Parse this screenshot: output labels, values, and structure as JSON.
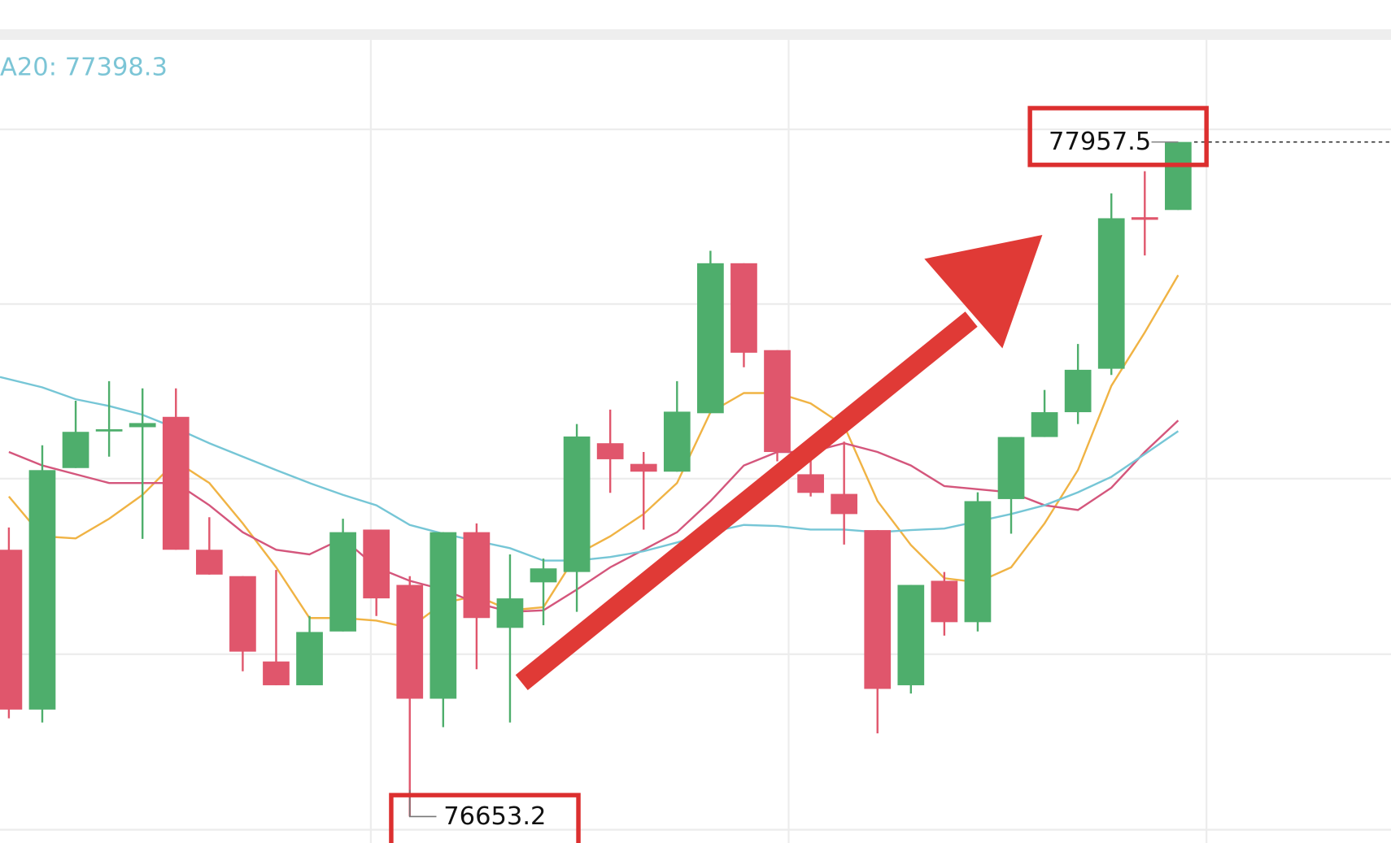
{
  "chart_data": {
    "type": "candlestick",
    "ma_label": "A20: 77398.3",
    "up_color": "#4eae6c",
    "down_color": "#e0566c",
    "ylim": [
      76602,
      78232
    ],
    "candles": [
      {
        "open": 77169,
        "high": 77212,
        "low": 76843,
        "close": 76860
      },
      {
        "open": 76860,
        "high": 77371,
        "low": 76835,
        "close": 77323
      },
      {
        "open": 77327,
        "high": 77457,
        "low": 77327,
        "close": 77397
      },
      {
        "open": 77399,
        "high": 77495,
        "low": 77349,
        "close": 77402
      },
      {
        "open": 77406,
        "high": 77481,
        "low": 77190,
        "close": 77414
      },
      {
        "open": 77426,
        "high": 77481,
        "low": 77169,
        "close": 77169
      },
      {
        "open": 77169,
        "high": 77232,
        "low": 77121,
        "close": 77121
      },
      {
        "open": 77118,
        "high": 77118,
        "low": 76934,
        "close": 76972
      },
      {
        "open": 76953,
        "high": 77130,
        "low": 76907,
        "close": 76907
      },
      {
        "open": 76907,
        "high": 77041,
        "low": 76907,
        "close": 77010
      },
      {
        "open": 77011,
        "high": 77229,
        "low": 77011,
        "close": 77203
      },
      {
        "open": 77208,
        "high": 77208,
        "low": 77041,
        "close": 77075
      },
      {
        "open": 77101,
        "high": 77118,
        "low": 76653.2,
        "close": 76881
      },
      {
        "open": 76881,
        "high": 77203,
        "low": 76826,
        "close": 77203
      },
      {
        "open": 77203,
        "high": 77220,
        "low": 76938,
        "close": 77037
      },
      {
        "open": 77018,
        "high": 77160,
        "low": 76835,
        "close": 77075
      },
      {
        "open": 77106,
        "high": 77152,
        "low": 77023,
        "close": 77133
      },
      {
        "open": 77126,
        "high": 77412,
        "low": 77049,
        "close": 77388
      },
      {
        "open": 77375,
        "high": 77440,
        "low": 77279,
        "close": 77344
      },
      {
        "open": 77335,
        "high": 77358,
        "low": 77208,
        "close": 77320
      },
      {
        "open": 77320,
        "high": 77495,
        "low": 77320,
        "close": 77436
      },
      {
        "open": 77433,
        "high": 77747,
        "low": 77433,
        "close": 77723
      },
      {
        "open": 77723,
        "high": 77723,
        "low": 77522,
        "close": 77550
      },
      {
        "open": 77555,
        "high": 77555,
        "low": 77340,
        "close": 77358
      },
      {
        "open": 77315,
        "high": 77358,
        "low": 77272,
        "close": 77279
      },
      {
        "open": 77277,
        "high": 77378,
        "low": 77179,
        "close": 77238
      },
      {
        "open": 77207,
        "high": 77207,
        "low": 76814,
        "close": 76900
      },
      {
        "open": 76907,
        "high": 77101,
        "low": 76891,
        "close": 77101
      },
      {
        "open": 77109,
        "high": 77126,
        "low": 77003,
        "close": 77029
      },
      {
        "open": 77029,
        "high": 77280,
        "low": 77011,
        "close": 77263
      },
      {
        "open": 77267,
        "high": 77387,
        "low": 77200,
        "close": 77387
      },
      {
        "open": 77387,
        "high": 77478,
        "low": 77387,
        "close": 77435
      },
      {
        "open": 77435,
        "high": 77567,
        "low": 77412,
        "close": 77517
      },
      {
        "open": 77519,
        "high": 77858,
        "low": 77507,
        "close": 77810
      },
      {
        "open": 77812,
        "high": 77901,
        "low": 77738,
        "close": 77807
      },
      {
        "open": 77826,
        "high": 77957.5,
        "low": 77826,
        "close": 77957.5
      }
    ],
    "lines": [
      {
        "color": "#f0b344",
        "values": [
          77272,
          77195,
          77191,
          77229,
          77275,
          77340,
          77298,
          77220,
          77135,
          77037,
          77037,
          77032,
          77018,
          77066,
          77080,
          77052,
          77058,
          77160,
          77195,
          77238,
          77298,
          77435,
          77472,
          77472,
          77452,
          77409,
          77263,
          77178,
          77114,
          77106,
          77135,
          77220,
          77323,
          77486,
          77589,
          77700
        ]
      },
      {
        "color": "#d4567c",
        "values": [
          77358,
          77332,
          77315,
          77298,
          77298,
          77298,
          77255,
          77203,
          77169,
          77160,
          77191,
          77135,
          77109,
          77092,
          77066,
          77049,
          77052,
          77092,
          77135,
          77169,
          77203,
          77263,
          77332,
          77358,
          77358,
          77375,
          77358,
          77332,
          77292,
          77286,
          77280,
          77255,
          77246,
          77289,
          77358,
          77419
        ]
      },
      {
        "color": "#76c6d6",
        "values": [
          77503,
          77483,
          77460,
          77447,
          77430,
          77404,
          77375,
          77349,
          77323,
          77298,
          77275,
          77255,
          77217,
          77200,
          77186,
          77172,
          77148,
          77148,
          77155,
          77166,
          77183,
          77203,
          77217,
          77215,
          77208,
          77208,
          77203,
          77207,
          77210,
          77224,
          77238,
          77255,
          77280,
          77310,
          77354,
          77398.3
        ]
      }
    ]
  }
}
